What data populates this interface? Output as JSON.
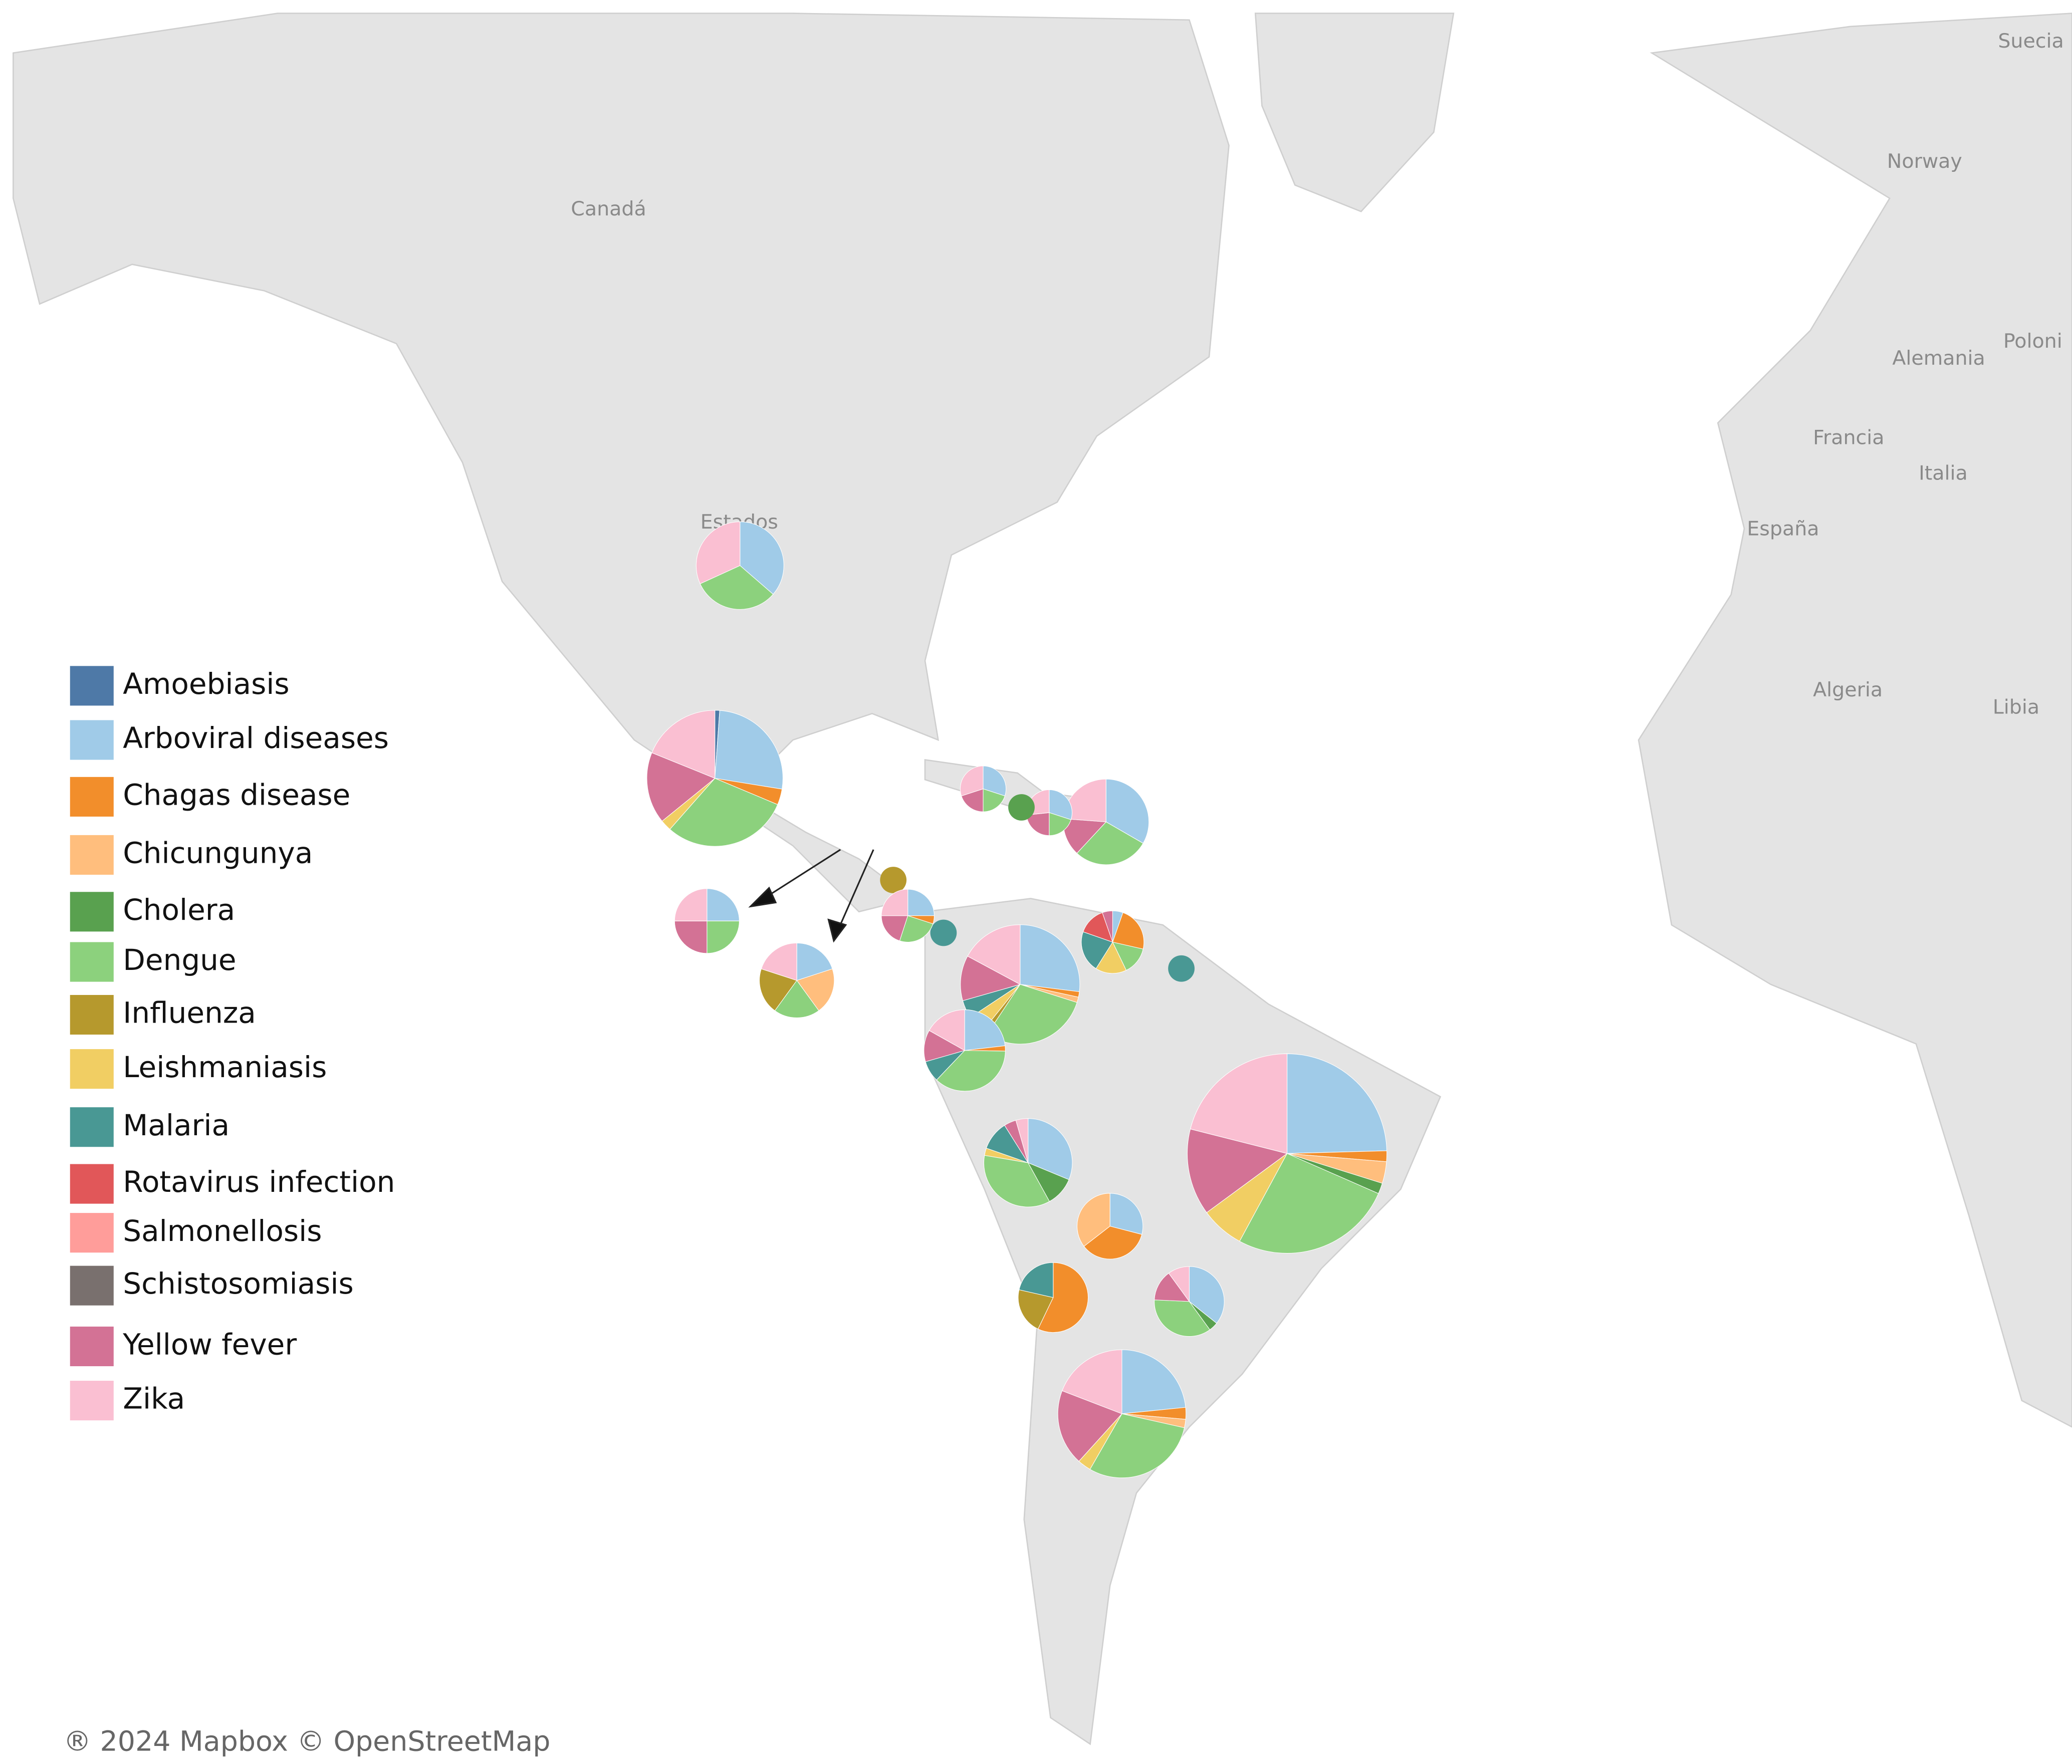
{
  "chart_data": {
    "type": "pie-map",
    "map_labels": [
      "Canadá",
      "Estados",
      "Norway",
      "Suecia",
      "Alemania",
      "Poloni",
      "Francia",
      "Italia",
      "España",
      "Algeria",
      "Libia"
    ],
    "attribution": "® 2024 Mapbox © OpenStreetMap",
    "series": [
      {
        "name": "Amoebiasis",
        "color": "#4e79a7"
      },
      {
        "name": "Arboviral diseases",
        "color": "#a0cbe8"
      },
      {
        "name": "Chagas disease",
        "color": "#f28e2b"
      },
      {
        "name": "Chicungunya",
        "color": "#ffbe7d"
      },
      {
        "name": "Cholera",
        "color": "#59a14f"
      },
      {
        "name": "Dengue",
        "color": "#8cd17d"
      },
      {
        "name": "Influenza",
        "color": "#b6992d"
      },
      {
        "name": "Leishmaniasis",
        "color": "#f1ce63"
      },
      {
        "name": "Malaria",
        "color": "#499894"
      },
      {
        "name": "Rotavirus infection",
        "color": "#e15759"
      },
      {
        "name": "Salmonellosis",
        "color": "#ff9d9a"
      },
      {
        "name": "Schistosomiasis",
        "color": "#79706e"
      },
      {
        "name": "Yellow fever",
        "color": "#d37295"
      },
      {
        "name": "Zika",
        "color": "#fabfd2"
      }
    ],
    "pies": [
      {
        "values": [
          null,
          4,
          null,
          null,
          null,
          3.5,
          null,
          null,
          null,
          null,
          null,
          null,
          null,
          3.5
        ]
      },
      {
        "values": [
          0.3,
          7,
          1,
          null,
          null,
          8,
          null,
          0.7,
          null,
          null,
          null,
          null,
          4.5,
          5
        ]
      },
      {
        "values": [
          null,
          14,
          1,
          2,
          1,
          15,
          null,
          4,
          null,
          null,
          null,
          null,
          8,
          12
        ]
      },
      {
        "values": [
          null,
          5.5,
          0.7,
          0.5,
          null,
          7,
          null,
          0.8,
          null,
          null,
          null,
          null,
          4.5,
          4.5
        ]
      },
      {
        "values": [
          null,
          5.5,
          0.3,
          0.3,
          null,
          6,
          0.3,
          1,
          1,
          null,
          null,
          null,
          2.5,
          3.5
        ]
      },
      {
        "values": [
          null,
          2.2,
          0.2,
          null,
          null,
          3.5,
          null,
          null,
          0.8,
          null,
          null,
          null,
          1.2,
          1.6
        ]
      },
      {
        "values": [
          null,
          3.5,
          null,
          null,
          1.2,
          4,
          null,
          0.3,
          1.2,
          null,
          null,
          null,
          0.5,
          0.5
        ]
      },
      {
        "values": [
          null,
          0.3,
          1.3,
          null,
          null,
          0.8,
          null,
          0.9,
          1.2,
          0.8,
          null,
          null,
          0.3,
          null
        ]
      },
      {
        "values": [
          null,
          1.8,
          2.2,
          2.2,
          null,
          null,
          null,
          null,
          null,
          null,
          null,
          null,
          null,
          null
        ]
      },
      {
        "values": [
          null,
          null,
          4,
          null,
          null,
          null,
          1.5,
          null,
          1.5,
          null,
          null,
          null,
          null,
          null
        ]
      },
      {
        "values": [
          null,
          2.5,
          null,
          null,
          0.3,
          2.5,
          null,
          null,
          null,
          null,
          null,
          null,
          1,
          0.7
        ]
      },
      {
        "values": [
          null,
          3.5,
          null,
          null,
          null,
          3,
          null,
          null,
          null,
          null,
          null,
          null,
          1.5,
          2.5
        ]
      },
      {
        "values": [
          null,
          0.9,
          null,
          null,
          null,
          0.6,
          null,
          null,
          null,
          null,
          null,
          null,
          0.6,
          0.9
        ]
      },
      {
        "values": [
          null,
          0.9,
          null,
          null,
          null,
          0.6,
          null,
          null,
          null,
          null,
          null,
          null,
          0.7,
          0.8
        ]
      },
      {
        "values": [
          null,
          null,
          null,
          null,
          1,
          null,
          null,
          null,
          null,
          null,
          null,
          null,
          null,
          null
        ]
      },
      {
        "values": [
          null,
          null,
          null,
          null,
          null,
          null,
          1,
          null,
          null,
          null,
          null,
          null,
          null,
          null
        ]
      },
      {
        "values": [
          null,
          null,
          null,
          null,
          null,
          null,
          null,
          null,
          1,
          null,
          null,
          null,
          null,
          null
        ]
      },
      {
        "values": [
          null,
          null,
          null,
          null,
          null,
          null,
          null,
          null,
          1,
          null,
          null,
          null,
          null,
          null
        ]
      },
      {
        "values": [
          null,
          1,
          0.2,
          null,
          null,
          1,
          null,
          null,
          null,
          null,
          null,
          null,
          0.8,
          1
        ]
      },
      {
        "values": [
          null,
          1.5,
          null,
          null,
          null,
          1.5,
          null,
          null,
          null,
          null,
          null,
          null,
          1.5,
          1.5
        ]
      },
      {
        "values": [
          null,
          1.6,
          null,
          1.6,
          null,
          1.6,
          1.6,
          null,
          null,
          null,
          null,
          null,
          null,
          1.6
        ]
      }
    ]
  }
}
